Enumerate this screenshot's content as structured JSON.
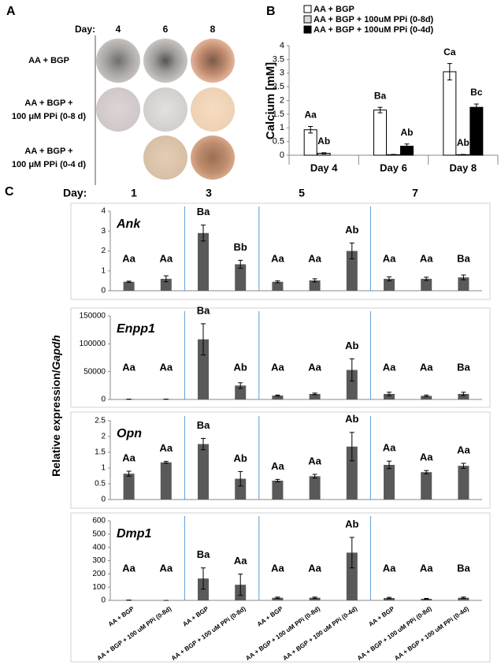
{
  "panel_labels": [
    "A",
    "B",
    "C"
  ],
  "panel_a": {
    "day_label": "Day:",
    "days": [
      "4",
      "6",
      "8"
    ],
    "rows": [
      [
        "AA + BGP"
      ],
      [
        "AA + BGP +",
        "100 μM PPi (0-8 d)"
      ],
      [
        "AA + BGP +",
        "100 μM PPi (0-4 d)"
      ]
    ]
  },
  "panel_c": {
    "day_label": "Day:",
    "days": [
      "1",
      "3",
      "5",
      "7"
    ],
    "ylabel": "Relative expression/",
    "ylabel_italic": "Gapdh"
  },
  "chart_data": [
    {
      "type": "grouped-bar",
      "ylabel": "Calcium [mM]",
      "legend": "top",
      "categories": [
        "Day 4",
        "Day 6",
        "Day 8"
      ],
      "series": [
        {
          "name": "AA + BGP",
          "color": "#ffffff",
          "values": [
            0.93,
            1.65,
            3.05
          ],
          "errors": [
            0.12,
            0.1,
            0.3
          ],
          "annotations": [
            "Aa",
            "Ba",
            "Ca"
          ]
        },
        {
          "name": "AA + BGP + 100uM PPi (0-8d)",
          "color": "#d9d9d9",
          "values": [
            0.07,
            0.02,
            0.02
          ],
          "errors": [
            0.02,
            0.01,
            0.01
          ],
          "annotations": [
            "Ab",
            null,
            "Ab"
          ]
        },
        {
          "name": "AA + BGP + 100uM PPi (0-4d)",
          "color": "#000000",
          "values": [
            null,
            0.33,
            1.75
          ],
          "errors": [
            null,
            0.08,
            0.12
          ],
          "annotations": [
            null,
            "Ab",
            "Bc"
          ]
        }
      ],
      "ylim": [
        0,
        4
      ],
      "yticks": [
        0,
        0.5,
        1,
        1.5,
        2,
        2.5,
        3,
        3.5,
        4
      ]
    },
    {
      "type": "bar",
      "title": "Ank",
      "color": "#595959",
      "categories": [
        null,
        null,
        null,
        null,
        null,
        null,
        null,
        null,
        null,
        null
      ],
      "values": [
        0.45,
        0.6,
        2.9,
        1.33,
        0.45,
        0.52,
        2.0,
        0.6,
        0.6,
        0.67
      ],
      "errors": [
        0.03,
        0.15,
        0.4,
        0.2,
        0.05,
        0.08,
        0.4,
        0.1,
        0.08,
        0.12
      ],
      "annotations": [
        "Aa",
        "Aa",
        "Ba",
        "Bb",
        "Aa",
        "Aa",
        "Ab",
        "Aa",
        "Aa",
        "Ba"
      ],
      "ylim": [
        0,
        4
      ],
      "yticks": [
        0,
        1,
        2,
        3,
        4
      ]
    },
    {
      "type": "bar",
      "title": "Enpp1",
      "color": "#595959",
      "categories": [
        null,
        null,
        null,
        null,
        null,
        null,
        null,
        null,
        null,
        null
      ],
      "values": [
        500,
        500,
        108000,
        25000,
        7000,
        10000,
        53000,
        10000,
        6500,
        10000
      ],
      "errors": [
        0,
        0,
        28000,
        5000,
        1000,
        1500,
        20000,
        3000,
        1500,
        3000
      ],
      "annotations": [
        "Aa",
        "Aa",
        "Ba",
        "Ab",
        "Aa",
        "Aa",
        "Ab",
        "Aa",
        "Aa",
        "Ba"
      ],
      "ylim": [
        0,
        150000
      ],
      "yticks": [
        0,
        50000,
        100000,
        150000
      ]
    },
    {
      "type": "bar",
      "title": "Opn",
      "color": "#595959",
      "categories": [
        null,
        null,
        null,
        null,
        null,
        null,
        null,
        null,
        null,
        null
      ],
      "values": [
        0.82,
        1.18,
        1.76,
        0.66,
        0.6,
        0.74,
        1.68,
        1.1,
        0.87,
        1.07
      ],
      "errors": [
        0.08,
        0.03,
        0.18,
        0.23,
        0.04,
        0.06,
        0.45,
        0.12,
        0.05,
        0.08
      ],
      "annotations": [
        "Aa",
        "Aa",
        "Ba",
        "Ab",
        "Aa",
        "Aa",
        "Ab",
        "Aa",
        "Aa",
        "Aa"
      ],
      "ylim": [
        0,
        2.5
      ],
      "yticks": [
        0,
        0.5,
        1,
        1.5,
        2,
        2.5
      ]
    },
    {
      "type": "bar",
      "title": "Dmp1",
      "color": "#595959",
      "categories": [
        "AA + BGP",
        "AA + BGP + 100 uM PPi (0-8d)",
        "AA + BGP",
        "AA + BGP + 100 uM PPi (0-8d)",
        "AA + BGP",
        "AA + BGP + 100 uM PPi (0-8d)",
        "AA + BGP + 100 uM PPi (0-4d)",
        "AA + BGP",
        "AA + BGP + 100 uM PPi (0-8d)",
        "AA + BGP + 100 uM PPi (0-4d)"
      ],
      "values": [
        2,
        0,
        165,
        118,
        20,
        20,
        360,
        18,
        12,
        20
      ],
      "errors": [
        0,
        0,
        80,
        80,
        5,
        5,
        115,
        5,
        3,
        5
      ],
      "annotations": [
        "Aa",
        "Aa",
        "Ba",
        "Aa",
        "Aa",
        "Aa",
        "Ab",
        "Aa",
        "Aa",
        "Ba"
      ],
      "ylim": [
        0,
        600
      ],
      "yticks": [
        0,
        100,
        200,
        300,
        400,
        500,
        600
      ]
    }
  ]
}
